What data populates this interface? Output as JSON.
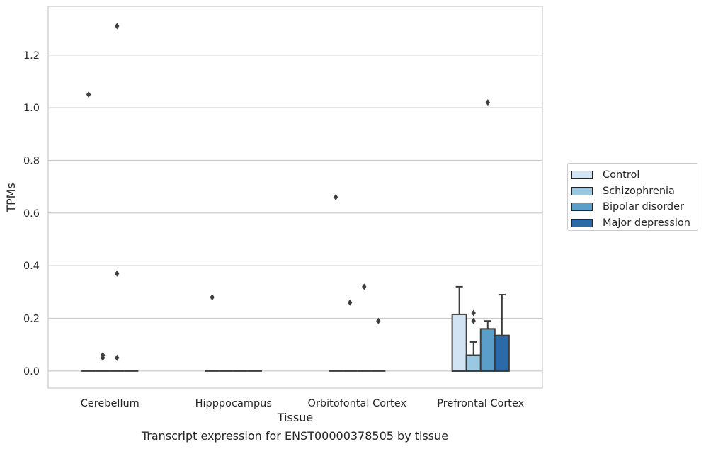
{
  "chart_data": {
    "type": "box",
    "caption": "Transcript expression for ENST00000378505 by tissue",
    "xlabel": "Tissue",
    "ylabel": "TPMs",
    "ylim": [
      -0.065,
      1.385
    ],
    "yticks": [
      0.0,
      0.2,
      0.4,
      0.6,
      0.8,
      1.0,
      1.2
    ],
    "ytick_labels": [
      "0.0",
      "0.2",
      "0.4",
      "0.6",
      "0.8",
      "1.0",
      "1.2"
    ],
    "grid": "horizontal",
    "legend_position": "right",
    "categories": [
      "Cerebellum",
      "Hipppocampus",
      "Orbitofontal Cortex",
      "Prefrontal Cortex"
    ],
    "series": [
      {
        "name": "Control",
        "color": "#d2e3f3",
        "boxes": [
          {
            "q1": 0,
            "median": 0,
            "q3": 0,
            "whisker_low": 0,
            "whisker_high": 0,
            "outliers": [
              1.05
            ]
          },
          {
            "q1": 0,
            "median": 0,
            "q3": 0,
            "whisker_low": 0,
            "whisker_high": 0,
            "outliers": [
              0.28
            ]
          },
          {
            "q1": 0,
            "median": 0,
            "q3": 0,
            "whisker_low": 0,
            "whisker_high": 0,
            "outliers": [
              0.66
            ]
          },
          {
            "q1": 0,
            "median": 0,
            "q3": 0.215,
            "whisker_low": 0,
            "whisker_high": 0.32,
            "outliers": []
          }
        ]
      },
      {
        "name": "Schizophrenia",
        "color": "#9ac8e0",
        "boxes": [
          {
            "q1": 0,
            "median": 0,
            "q3": 0,
            "whisker_low": 0,
            "whisker_high": 0,
            "outliers": [
              0.06,
              0.05
            ]
          },
          {
            "q1": 0,
            "median": 0,
            "q3": 0,
            "whisker_low": 0,
            "whisker_high": 0,
            "outliers": []
          },
          {
            "q1": 0,
            "median": 0,
            "q3": 0,
            "whisker_low": 0,
            "whisker_high": 0,
            "outliers": [
              0.26
            ]
          },
          {
            "q1": 0,
            "median": 0,
            "q3": 0.06,
            "whisker_low": 0,
            "whisker_high": 0.11,
            "outliers": [
              0.22,
              0.19
            ]
          }
        ]
      },
      {
        "name": "Bipolar disorder",
        "color": "#5a9ec9",
        "boxes": [
          {
            "q1": 0,
            "median": 0,
            "q3": 0,
            "whisker_low": 0,
            "whisker_high": 0,
            "outliers": [
              1.31,
              0.37,
              0.05
            ]
          },
          {
            "q1": 0,
            "median": 0,
            "q3": 0,
            "whisker_low": 0,
            "whisker_high": 0,
            "outliers": []
          },
          {
            "q1": 0,
            "median": 0,
            "q3": 0,
            "whisker_low": 0,
            "whisker_high": 0,
            "outliers": [
              0.32
            ]
          },
          {
            "q1": 0,
            "median": 0,
            "q3": 0.16,
            "whisker_low": 0,
            "whisker_high": 0.19,
            "outliers": [
              1.02
            ]
          }
        ]
      },
      {
        "name": "Major depression",
        "color": "#2a6aa8",
        "boxes": [
          {
            "q1": 0,
            "median": 0,
            "q3": 0,
            "whisker_low": 0,
            "whisker_high": 0,
            "outliers": []
          },
          {
            "q1": 0,
            "median": 0,
            "q3": 0,
            "whisker_low": 0,
            "whisker_high": 0,
            "outliers": []
          },
          {
            "q1": 0,
            "median": 0,
            "q3": 0,
            "whisker_low": 0,
            "whisker_high": 0,
            "outliers": [
              0.19
            ]
          },
          {
            "q1": 0,
            "median": 0,
            "q3": 0.135,
            "whisker_low": 0,
            "whisker_high": 0.29,
            "outliers": []
          }
        ]
      }
    ]
  }
}
